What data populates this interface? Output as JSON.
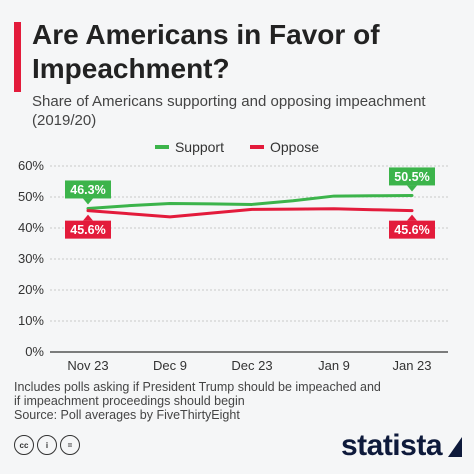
{
  "header": {
    "title": "Are Americans in Favor of Impeachment?",
    "subtitle": "Share of Americans supporting and opposing impeachment (2019/20)"
  },
  "colors": {
    "accent": "#e31b3b",
    "support": "#3cb44b",
    "oppose": "#e31b3b"
  },
  "chart_data": {
    "type": "line",
    "title": "Are Americans in Favor of Impeachment?",
    "subtitle": "Share of Americans supporting and opposing impeachment (2019/20)",
    "categories": [
      "Nov 23",
      "Dec 9",
      "Dec 23",
      "Jan 9",
      "Jan 23"
    ],
    "ylim": [
      0,
      60
    ],
    "yticks": [
      0,
      10,
      20,
      30,
      40,
      50,
      60
    ],
    "ytick_labels": [
      "0%",
      "10%",
      "20%",
      "30%",
      "40%",
      "50%",
      "60%"
    ],
    "grid": true,
    "legend": "top-center",
    "series": [
      {
        "name": "Support",
        "color": "#3cb44b",
        "x": [
          0,
          0.5,
          1,
          1.5,
          2,
          2.5,
          3,
          3.5,
          4
        ],
        "values": [
          46.3,
          47.2,
          47.9,
          47.8,
          47.6,
          48.8,
          50.3,
          50.4,
          50.5
        ],
        "labels": [
          {
            "index": 0,
            "text": "46.3%"
          },
          {
            "index": 8,
            "text": "50.5%"
          }
        ]
      },
      {
        "name": "Oppose",
        "color": "#e31b3b",
        "x": [
          0,
          0.5,
          1,
          1.5,
          2,
          2.5,
          3,
          3.5,
          4
        ],
        "values": [
          45.6,
          44.6,
          43.6,
          44.8,
          46.0,
          46.1,
          46.2,
          45.9,
          45.6
        ],
        "labels": [
          {
            "index": 0,
            "text": "45.6%"
          },
          {
            "index": 8,
            "text": "45.6%"
          }
        ]
      }
    ]
  },
  "note": {
    "line1": "Includes polls asking if President Trump should be impeached and",
    "line2": "if impeachment proceedings should begin",
    "source": "Source: Poll averages by FiveThirtyEight"
  },
  "footer": {
    "brand": "statista",
    "icons": [
      "cc-icon",
      "person-icon",
      "equals-icon"
    ],
    "icon_glyphs": [
      "cc",
      "i",
      "="
    ]
  }
}
